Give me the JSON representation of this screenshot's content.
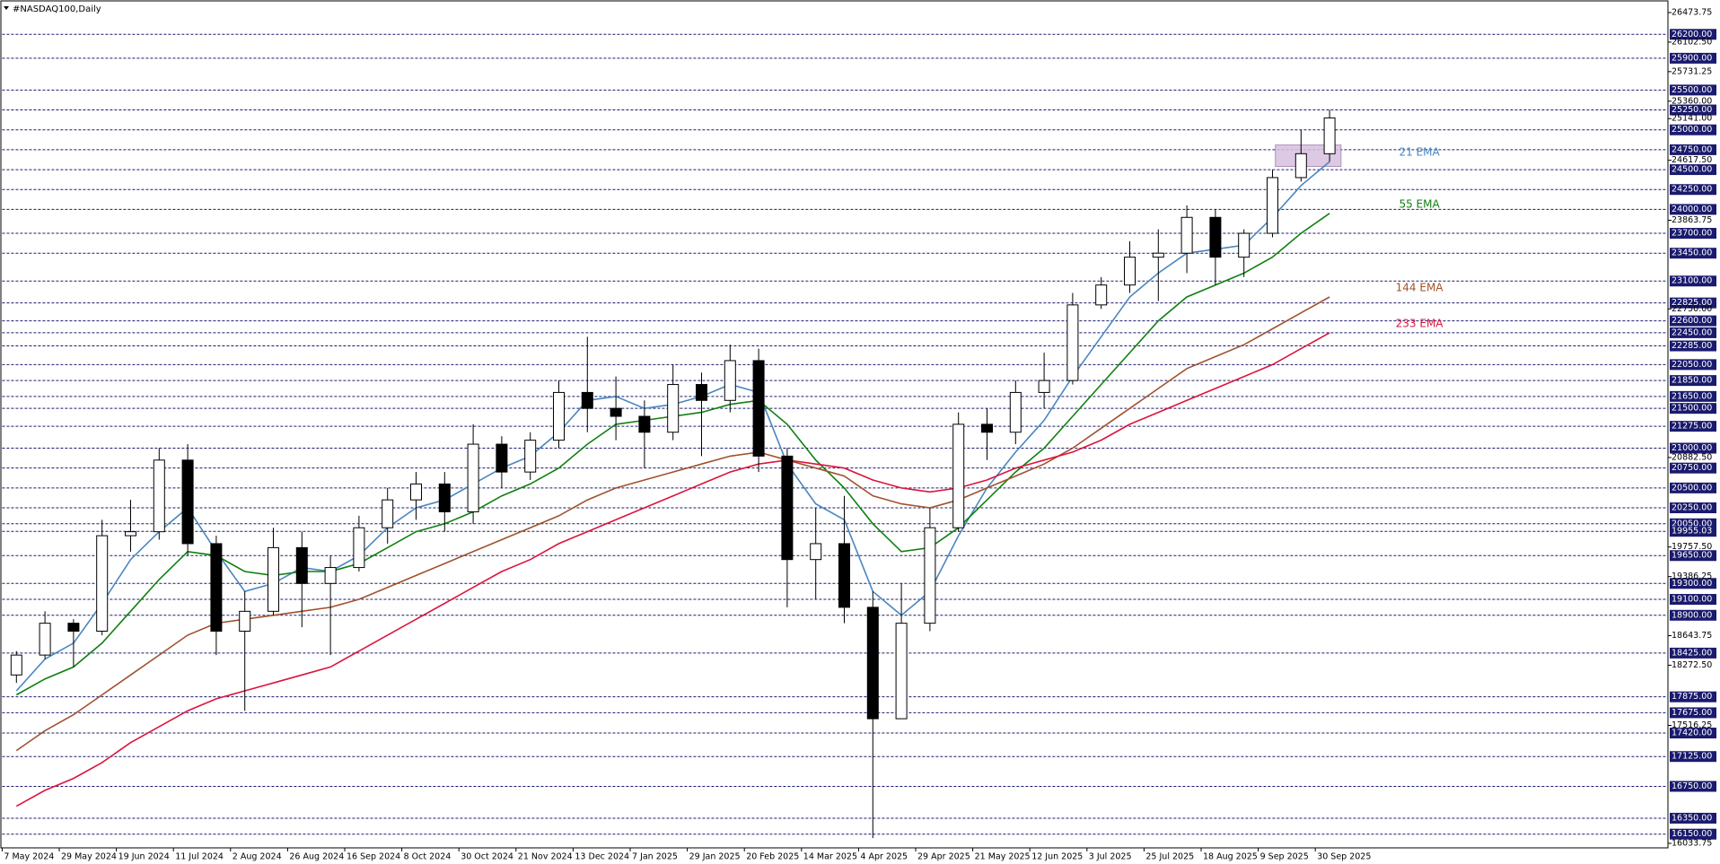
{
  "chart_data": {
    "type": "candlestick",
    "title": "#NASDAQ100,Daily",
    "categories": [
      "7 May 2024",
      null,
      "29 May 2024",
      null,
      "19 Jun 2024",
      null,
      "11 Jul 2024",
      null,
      "2 Aug 2024",
      null,
      "26 Aug 2024",
      null,
      "16 Sep 2024",
      null,
      "8 Oct 2024",
      null,
      "30 Oct 2024",
      null,
      "21 Nov 2024",
      null,
      "13 Dec 2024",
      null,
      "7 Jan 2025",
      null,
      "29 Jan 2025",
      null,
      "20 Feb 2025",
      null,
      "14 Mar 2025",
      null,
      "4 Apr 2025",
      null,
      "29 Apr 2025",
      null,
      "21 May 2025",
      null,
      "12 Jun 2025",
      null,
      "3 Jul 2025",
      null,
      "25 Jul 2025",
      null,
      "18 Aug 2025",
      null,
      "9 Sep 2025",
      null,
      "30 Sep 2025"
    ],
    "open": [
      18150,
      18400,
      18800,
      18700,
      19900,
      19950,
      20850,
      19800,
      18700,
      18950,
      19750,
      19300,
      19500,
      20000,
      20350,
      20550,
      20200,
      21050,
      20700,
      21100,
      21700,
      21500,
      21400,
      21200,
      21800,
      21600,
      22100,
      20900,
      19600,
      19800,
      19000,
      17600,
      18800,
      20000,
      21300,
      21200,
      21700,
      21850,
      22800,
      23050,
      23400,
      23450,
      23900,
      23400,
      23700,
      24400,
      24700
    ],
    "high": [
      18450,
      18950,
      18850,
      20100,
      20350,
      21000,
      21050,
      19900,
      19200,
      20000,
      19950,
      19650,
      20150,
      20500,
      20700,
      20700,
      21300,
      21150,
      21200,
      21850,
      22400,
      21900,
      21600,
      22050,
      21950,
      22300,
      22250,
      21000,
      20250,
      20400,
      19200,
      19300,
      20250,
      21450,
      21500,
      21850,
      22200,
      22950,
      23150,
      23600,
      23750,
      24050,
      24000,
      23750,
      24500,
      25000,
      25250
    ],
    "low": [
      18050,
      18350,
      18250,
      18650,
      19700,
      19850,
      19650,
      18400,
      17700,
      18900,
      18750,
      18400,
      19450,
      19800,
      20100,
      19950,
      20050,
      20500,
      20600,
      21000,
      21200,
      21100,
      20750,
      21100,
      20900,
      21450,
      20700,
      19000,
      19100,
      18800,
      16100,
      17600,
      18700,
      19950,
      20850,
      21050,
      21500,
      21800,
      22750,
      22950,
      22850,
      23200,
      23050,
      23150,
      23650,
      24350,
      24600
    ],
    "close": [
      18400,
      18800,
      18700,
      19900,
      19950,
      20850,
      19800,
      18700,
      18950,
      19750,
      19300,
      19500,
      20000,
      20350,
      20550,
      20200,
      21050,
      20700,
      21100,
      21700,
      21500,
      21400,
      21200,
      21800,
      21600,
      22100,
      20900,
      19600,
      19800,
      19000,
      17600,
      18800,
      20000,
      21300,
      21200,
      21700,
      21850,
      22800,
      23050,
      23400,
      23450,
      23900,
      23400,
      23700,
      24400,
      24700,
      25150
    ],
    "up_color": "#ffffff",
    "down_color": "#000000",
    "series": [
      {
        "name": "21 EMA",
        "color": "#4a86c0",
        "values": [
          17950,
          18350,
          18550,
          19050,
          19600,
          19950,
          20250,
          19700,
          19200,
          19300,
          19500,
          19450,
          19650,
          20000,
          20250,
          20350,
          20550,
          20750,
          20900,
          21200,
          21600,
          21650,
          21500,
          21550,
          21650,
          21800,
          21700,
          20800,
          20300,
          20100,
          19200,
          18900,
          19200,
          19900,
          20500,
          20950,
          21350,
          21900,
          22400,
          22900,
          23200,
          23450,
          23500,
          23550,
          23900,
          24300,
          24600
        ]
      },
      {
        "name": "55 EMA",
        "color": "#108010",
        "values": [
          17900,
          18100,
          18250,
          18550,
          18950,
          19350,
          19700,
          19650,
          19450,
          19400,
          19450,
          19450,
          19550,
          19750,
          19950,
          20050,
          20200,
          20400,
          20550,
          20750,
          21050,
          21300,
          21350,
          21400,
          21450,
          21550,
          21600,
          21300,
          20850,
          20500,
          20050,
          19700,
          19750,
          20000,
          20350,
          20700,
          21000,
          21400,
          21800,
          22200,
          22600,
          22900,
          23050,
          23200,
          23400,
          23700,
          23950
        ]
      },
      {
        "name": "144 EMA",
        "color": "#a0522d",
        "values": [
          17200,
          17450,
          17650,
          17900,
          18150,
          18400,
          18650,
          18800,
          18850,
          18900,
          18950,
          19000,
          19100,
          19250,
          19400,
          19550,
          19700,
          19850,
          20000,
          20150,
          20350,
          20500,
          20600,
          20700,
          20800,
          20900,
          20950,
          20850,
          20750,
          20650,
          20400,
          20300,
          20250,
          20350,
          20500,
          20650,
          20800,
          21000,
          21250,
          21500,
          21750,
          22000,
          22150,
          22300,
          22500,
          22700,
          22900
        ]
      },
      {
        "name": "233 EMA",
        "color": "#dc143c",
        "values": [
          16500,
          16700,
          16850,
          17050,
          17300,
          17500,
          17700,
          17850,
          17950,
          18050,
          18150,
          18250,
          18450,
          18650,
          18850,
          19050,
          19250,
          19450,
          19600,
          19800,
          19950,
          20100,
          20250,
          20400,
          20550,
          20700,
          20800,
          20850,
          20800,
          20750,
          20600,
          20500,
          20450,
          20500,
          20600,
          20750,
          20850,
          20950,
          21100,
          21300,
          21450,
          21600,
          21750,
          21900,
          22050,
          22250,
          22450
        ]
      }
    ],
    "zone": {
      "low": 24540,
      "high": 24810,
      "color": "#d8c0e0"
    },
    "ylim": [
      16033.75,
      26473.75
    ],
    "yticks": [
      {
        "value": 26473.75,
        "label": "26473.75"
      },
      {
        "value": 26102.5,
        "label": "26102.50"
      },
      {
        "value": 25731.25,
        "label": "25731.25"
      },
      {
        "value": 25360,
        "label": "25360.00"
      },
      {
        "value": 25141,
        "label": "25141.00"
      },
      {
        "value": 24617.5,
        "label": "24617.50"
      },
      {
        "value": 23863.75,
        "label": "23863.75"
      },
      {
        "value": 22750,
        "label": "22750.00"
      },
      {
        "value": 20882.5,
        "label": "20882.50"
      },
      {
        "value": 19757.5,
        "label": "19757.50"
      },
      {
        "value": 19386.25,
        "label": "19386.25"
      },
      {
        "value": 18643.75,
        "label": "18643.75"
      },
      {
        "value": 18272.5,
        "label": "18272.50"
      },
      {
        "value": 17516.25,
        "label": "17516.25"
      },
      {
        "value": 16033.75,
        "label": "16033.75"
      }
    ],
    "level_lines": [
      {
        "value": 26200,
        "label": "26200.00"
      },
      {
        "value": 25900,
        "label": "25900.00"
      },
      {
        "value": 25500,
        "label": "25500.00"
      },
      {
        "value": 25250,
        "label": "25250.00"
      },
      {
        "value": 25000,
        "label": "25000.00"
      },
      {
        "value": 24750,
        "label": "24750.00"
      },
      {
        "value": 24500,
        "label": "24500.00"
      },
      {
        "value": 24250,
        "label": "24250.00"
      },
      {
        "value": 24000,
        "label": "24000.00"
      },
      {
        "value": 23700,
        "label": "23700.00"
      },
      {
        "value": 23450,
        "label": "23450.00"
      },
      {
        "value": 23100,
        "label": "23100.00"
      },
      {
        "value": 22825,
        "label": "22825.00"
      },
      {
        "value": 22600,
        "label": "22600.00"
      },
      {
        "value": 22450,
        "label": "22450.00"
      },
      {
        "value": 22285,
        "label": "22285.00"
      },
      {
        "value": 22050,
        "label": "22050.00"
      },
      {
        "value": 21850,
        "label": "21850.00"
      },
      {
        "value": 21650,
        "label": "21650.00"
      },
      {
        "value": 21500,
        "label": "21500.00"
      },
      {
        "value": 21275,
        "label": "21275.00"
      },
      {
        "value": 21000,
        "label": "21000.00"
      },
      {
        "value": 20750,
        "label": "20750.00"
      },
      {
        "value": 20500,
        "label": "20500.00"
      },
      {
        "value": 20250,
        "label": "20250.00"
      },
      {
        "value": 20050,
        "label": "20050.00"
      },
      {
        "value": 19955.03,
        "label": "19955.03"
      },
      {
        "value": 19650,
        "label": "19650.00"
      },
      {
        "value": 19300,
        "label": "19300.00"
      },
      {
        "value": 19100,
        "label": "19100.00"
      },
      {
        "value": 18900,
        "label": "18900.00"
      },
      {
        "value": 18425,
        "label": "18425.00"
      },
      {
        "value": 17875,
        "label": "17875.00"
      },
      {
        "value": 17675,
        "label": "17675.00"
      },
      {
        "value": 17420,
        "label": "17420.00"
      },
      {
        "value": 17125,
        "label": "17125.00"
      },
      {
        "value": 16750,
        "label": "16750.00"
      },
      {
        "value": 16350,
        "label": "16350.00"
      },
      {
        "value": 16150,
        "label": "16150.00"
      }
    ],
    "level_color": "#1a1a6e"
  }
}
